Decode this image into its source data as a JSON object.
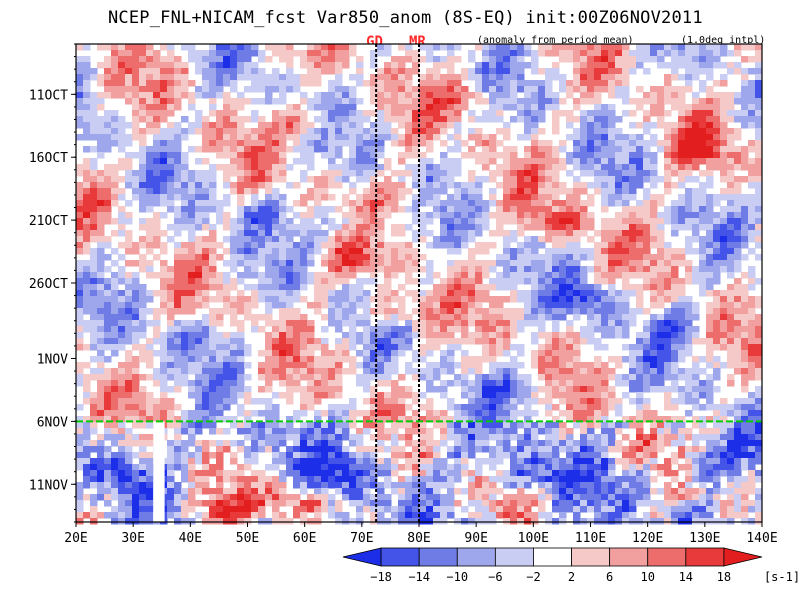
{
  "header": {
    "title": "NCEP_FNL+NICAM_fcst Var850_anom (8S-EQ) init:00Z06NOV2011",
    "note_left": "(anomaly from period mean)",
    "note_right": "(1.0deg intpl)",
    "markers": [
      {
        "label": "GD",
        "lon": 72.5
      },
      {
        "label": "MR",
        "lon": 80
      }
    ]
  },
  "chart_data": {
    "type": "heatmap",
    "title": "NCEP_FNL+NICAM_fcst Var850_anom (8S-EQ) init:00Z06NOV2011",
    "xlabel": "",
    "ylabel": "",
    "x_range": [
      20,
      140
    ],
    "x_ticks": [
      "20E",
      "30E",
      "40E",
      "50E",
      "60E",
      "70E",
      "80E",
      "90E",
      "100E",
      "110E",
      "120E",
      "130E",
      "140E"
    ],
    "x_tick_values": [
      20,
      30,
      40,
      50,
      60,
      70,
      80,
      90,
      100,
      110,
      120,
      130,
      140
    ],
    "y_range_days": [
      "2011-10-07",
      "2011-11-14"
    ],
    "y_ticks": [
      "11OCT",
      "16OCT",
      "21OCT",
      "26OCT",
      "1NOV",
      "6NOV",
      "11NOV"
    ],
    "y_tick_dates": [
      "2011-10-11",
      "2011-10-16",
      "2011-10-21",
      "2011-10-26",
      "2011-11-01",
      "2011-11-06",
      "2011-11-11"
    ],
    "init_line_date": "2011-11-06",
    "init_line_color": "#00cc00",
    "vertical_markers_lon": [
      72.5,
      80
    ],
    "missing_data_lon": [
      33.5,
      35.5
    ],
    "colorbar": {
      "levels": [
        "-18",
        "-14",
        "-10",
        "-6",
        "-2",
        "2",
        "6",
        "10",
        "14",
        "18"
      ],
      "unit": "[s-1]",
      "colors": [
        "#1c2ee8",
        "#4454e8",
        "#6f7ce6",
        "#9ea6ec",
        "#c9cdf4",
        "#ffffff",
        "#f6c9c9",
        "#f29f9f",
        "#ed6d6d",
        "#e83a3a",
        "#e21e1e"
      ]
    },
    "features": [
      {
        "lon": 58,
        "date": "2011-11-12",
        "value": 18
      },
      {
        "lon": 45,
        "date": "2011-11-13",
        "value": 18
      },
      {
        "lon": 75,
        "date": "2011-10-28",
        "value": 14
      },
      {
        "lon": 68,
        "date": "2011-10-24",
        "value": 10
      },
      {
        "lon": 104,
        "date": "2011-10-21",
        "value": 14
      },
      {
        "lon": 128,
        "date": "2011-10-15",
        "value": 14
      },
      {
        "lon": 77,
        "date": "2011-10-19",
        "value": 10
      },
      {
        "lon": 60,
        "date": "2011-10-13",
        "value": 10
      },
      {
        "lon": 88,
        "date": "2011-10-11",
        "value": 10
      },
      {
        "lon": 52,
        "date": "2011-10-20",
        "value": -10
      },
      {
        "lon": 66,
        "date": "2011-10-21",
        "value": -10
      },
      {
        "lon": 110,
        "date": "2011-10-27",
        "value": -14
      },
      {
        "lon": 100,
        "date": "2011-11-10",
        "value": -14
      },
      {
        "lon": 130,
        "date": "2011-11-09",
        "value": -14
      },
      {
        "lon": 65,
        "date": "2011-11-10",
        "value": -10
      },
      {
        "lon": 97,
        "date": "2011-11-03",
        "value": -10
      },
      {
        "lon": 125,
        "date": "2011-10-29",
        "value": -10
      },
      {
        "lon": 40,
        "date": "2011-10-30",
        "value": -10
      },
      {
        "lon": 118,
        "date": "2011-11-08",
        "value": 10
      },
      {
        "lon": 28,
        "date": "2011-11-10",
        "value": -10
      }
    ]
  }
}
